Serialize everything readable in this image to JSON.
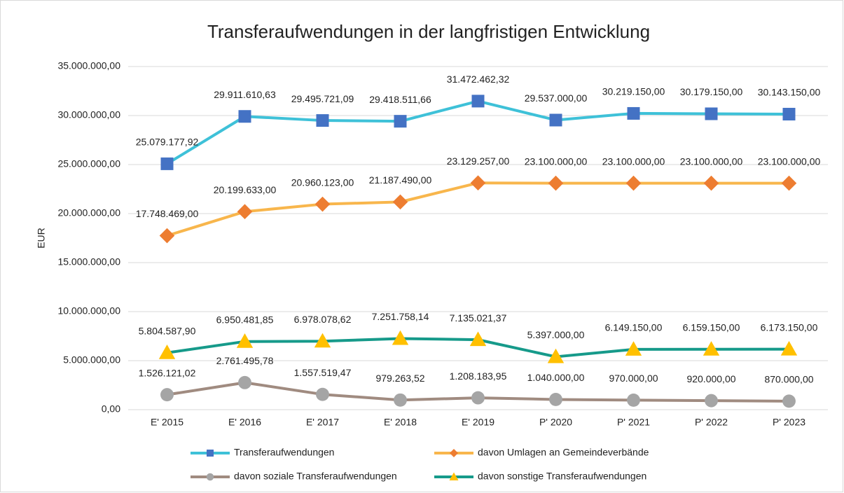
{
  "chart_data": {
    "type": "line",
    "title": "Transferaufwendungen in der langfristigen Entwicklung",
    "y_label": "EUR",
    "categories": [
      "E' 2015",
      "E' 2016",
      "E' 2017",
      "E' 2018",
      "E' 2019",
      "P' 2020",
      "P' 2021",
      "P' 2022",
      "P' 2023"
    ],
    "ylim": [
      0,
      35000000
    ],
    "yticks": [
      {
        "value": 0,
        "label": "0,00"
      },
      {
        "value": 5000000,
        "label": "5.000.000,00"
      },
      {
        "value": 10000000,
        "label": "10.000.000,00"
      },
      {
        "value": 15000000,
        "label": "15.000.000,00"
      },
      {
        "value": 20000000,
        "label": "20.000.000,00"
      },
      {
        "value": 25000000,
        "label": "25.000.000,00"
      },
      {
        "value": 30000000,
        "label": "30.000.000,00"
      },
      {
        "value": 35000000,
        "label": "35.000.000,00"
      }
    ],
    "grid": true,
    "legend": "bottom",
    "series": [
      {
        "name": "Transferaufwendungen",
        "color": "#3ec1d8",
        "marker_color": "#4472c4",
        "marker": "square",
        "values": [
          25079177.92,
          29911610.63,
          29495721.09,
          29418511.66,
          31472462.32,
          29537000,
          30219150,
          30179150,
          30143150
        ],
        "value_labels": [
          "25.079.177,92",
          "29.911.610,63",
          "29.495.721,09",
          "29.418.511,66",
          "31.472.462,32",
          "29.537.000,00",
          "30.219.150,00",
          "30.179.150,00",
          "30.143.150,00"
        ]
      },
      {
        "name": "davon Umlagen an Gemeindeverbände",
        "color": "#f8b64c",
        "marker_color": "#ed7d31",
        "marker": "diamond",
        "values": [
          17748469,
          20199633,
          20960123,
          21187490,
          23129257,
          23100000,
          23100000,
          23100000,
          23100000
        ],
        "value_labels": [
          "17.748.469,00",
          "20.199.633,00",
          "20.960.123,00",
          "21.187.490,00",
          "23.129.257,00",
          "23.100.000,00",
          "23.100.000,00",
          "23.100.000,00",
          "23.100.000,00"
        ]
      },
      {
        "name": "davon soziale Transferaufwendungen",
        "color": "#a08b80",
        "marker_color": "#a5a5a5",
        "marker": "circle",
        "values": [
          1526121.02,
          2761495.78,
          1557519.47,
          979263.52,
          1208183.95,
          1040000,
          970000,
          920000,
          870000
        ],
        "value_labels": [
          "1.526.121,02",
          "2.761.495,78",
          "1.557.519,47",
          "979.263,52",
          "1.208.183,95",
          "1.040.000,00",
          "970.000,00",
          "920.000,00",
          "870.000,00"
        ]
      },
      {
        "name": "davon sonstige Transferaufwendungen",
        "color": "#169a8a",
        "marker_color": "#ffc000",
        "marker": "triangle",
        "values": [
          5804587.9,
          6950481.85,
          6978078.62,
          7251758.14,
          7135021.37,
          5397000,
          6149150,
          6159150,
          6173150
        ],
        "value_labels": [
          "5.804.587,90",
          "6.950.481,85",
          "6.978.078,62",
          "7.251.758,14",
          "7.135.021,37",
          "5.397.000,00",
          "6.149.150,00",
          "6.159.150,00",
          "6.173.150,00"
        ]
      }
    ]
  }
}
